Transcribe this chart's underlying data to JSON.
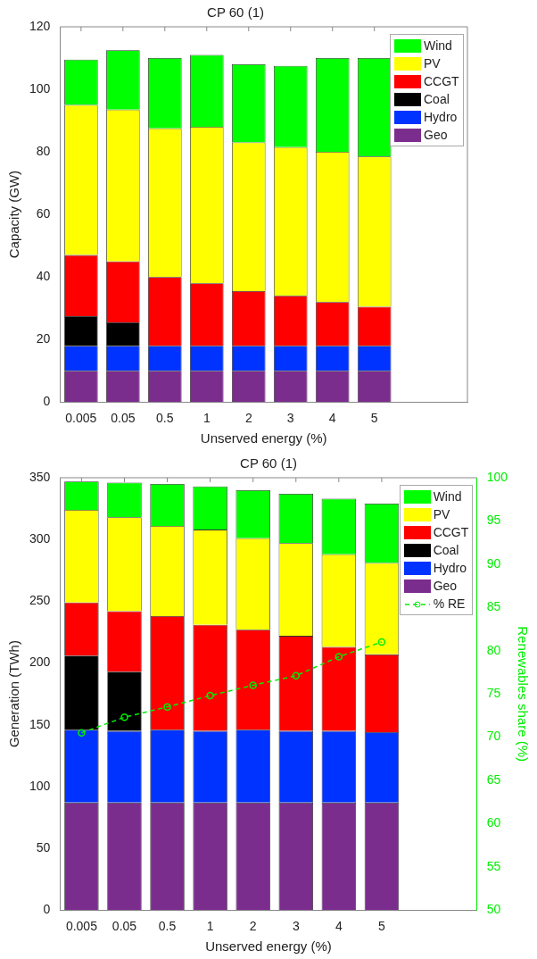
{
  "chart_data": [
    {
      "type": "bar",
      "title": "CP 60 (1)",
      "xlabel": "Unserved energy (%)",
      "ylabel": "Capacity (GW)",
      "categories": [
        "0.005",
        "0.05",
        "0.5",
        "1",
        "2",
        "3",
        "4",
        "5"
      ],
      "stacked": true,
      "ylim": [
        0,
        120
      ],
      "yticks": [
        0,
        20,
        40,
        60,
        80,
        100,
        120
      ],
      "grid": false,
      "legend": "top right",
      "series": [
        {
          "name": "Geo",
          "color": "#7b2d8e",
          "values": [
            10,
            10,
            10,
            10,
            10,
            10,
            10,
            10
          ]
        },
        {
          "name": "Hydro",
          "color": "#0033ff",
          "values": [
            8,
            8,
            8,
            8,
            8,
            8,
            8,
            8
          ]
        },
        {
          "name": "Coal",
          "color": "#000000",
          "values": [
            9.5,
            7.5,
            0,
            0,
            0,
            0,
            0,
            0
          ]
        },
        {
          "name": "CCGT",
          "color": "#ff0000",
          "values": [
            19.5,
            19.5,
            22,
            20,
            17.5,
            16,
            14,
            12.5
          ]
        },
        {
          "name": "PV",
          "color": "#ffff00",
          "values": [
            48,
            48.5,
            47.5,
            50,
            47.5,
            47.5,
            48,
            48
          ]
        },
        {
          "name": "Wind",
          "color": "#00ff00",
          "values": [
            14.5,
            19,
            22.5,
            23,
            25,
            26,
            30,
            31.5
          ]
        }
      ]
    },
    {
      "type": "bar",
      "title": "CP 60 (1)",
      "xlabel": "Unserved energy (%)",
      "ylabel": "Generation (TWh)",
      "y2label": "Renewables share (%)",
      "categories": [
        "0.005",
        "0.05",
        "0.5",
        "1",
        "2",
        "3",
        "4",
        "5"
      ],
      "stacked": true,
      "ylim": [
        0,
        350
      ],
      "yticks": [
        0,
        50,
        100,
        150,
        200,
        250,
        300,
        350
      ],
      "y2lim": [
        50,
        100
      ],
      "y2ticks": [
        50,
        55,
        60,
        65,
        70,
        75,
        80,
        85,
        90,
        95,
        100
      ],
      "grid": false,
      "legend": "top right",
      "series": [
        {
          "name": "Geo",
          "color": "#7b2d8e",
          "values": [
            87,
            87,
            87,
            87,
            87,
            87,
            87,
            87
          ]
        },
        {
          "name": "Hydro",
          "color": "#0033ff",
          "values": [
            59,
            58,
            59,
            58,
            59,
            58,
            58,
            57
          ]
        },
        {
          "name": "Coal",
          "color": "#000000",
          "values": [
            60,
            48,
            0,
            0,
            0,
            0,
            0,
            0
          ]
        },
        {
          "name": "CCGT",
          "color": "#ff0000",
          "values": [
            43,
            49,
            92,
            86,
            81,
            77,
            68,
            63
          ]
        },
        {
          "name": "PV",
          "color": "#ffff00",
          "values": [
            75,
            76,
            73,
            77,
            74,
            75,
            75,
            74
          ]
        },
        {
          "name": "Wind",
          "color": "#00ff00",
          "values": [
            23,
            28,
            34,
            35,
            39,
            40,
            45,
            48
          ]
        },
        {
          "name": "% RE",
          "type": "line",
          "axis": "y2",
          "color": "#00ee00",
          "marker": "circle",
          "line_style": "dashed",
          "values": [
            70.5,
            72.3,
            73.5,
            74.8,
            76,
            77.1,
            79.3,
            81
          ]
        }
      ]
    }
  ]
}
